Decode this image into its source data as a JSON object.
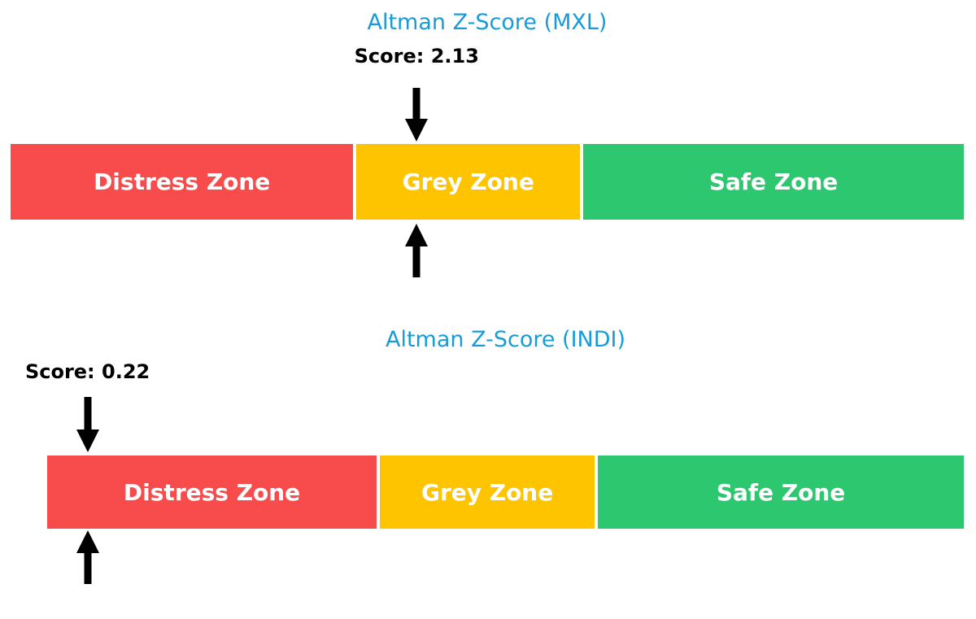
{
  "colors": {
    "background": "#FFFFFF",
    "title_blue": "#189CD8",
    "distress_red": "#F84C4C",
    "grey_yellow": "#FFC400",
    "safe_green": "#2DC770",
    "arrow_black": "#000000",
    "zone_label_white": "#FFFFFF"
  },
  "chart_data": [
    {
      "type": "bar",
      "subtype": "zone-indicator",
      "title": "Altman Z-Score (MXL)",
      "score": 2.13,
      "score_label": "Score: 2.13",
      "axis_range": [
        0,
        5
      ],
      "grid": false,
      "legend": false,
      "marker": "arrows-above-and-below-at-score",
      "zones": [
        {
          "label": "Distress Zone",
          "from": 0,
          "to": 1.81,
          "color": "#F84C4C"
        },
        {
          "label": "Grey Zone",
          "from": 1.81,
          "to": 2.99,
          "color": "#FFC400"
        },
        {
          "label": "Safe Zone",
          "from": 2.99,
          "to": 5,
          "color": "#2DC770"
        }
      ]
    },
    {
      "type": "bar",
      "subtype": "zone-indicator",
      "title": "Altman Z-Score (INDI)",
      "score": 0.22,
      "score_label": "Score: 0.22",
      "axis_range": [
        0,
        5
      ],
      "grid": false,
      "legend": false,
      "marker": "arrows-above-and-below-at-score",
      "zones": [
        {
          "label": "Distress Zone",
          "from": 0,
          "to": 1.81,
          "color": "#F84C4C"
        },
        {
          "label": "Grey Zone",
          "from": 1.81,
          "to": 2.99,
          "color": "#FFC400"
        },
        {
          "label": "Safe Zone",
          "from": 2.99,
          "to": 5,
          "color": "#2DC770"
        }
      ]
    }
  ]
}
